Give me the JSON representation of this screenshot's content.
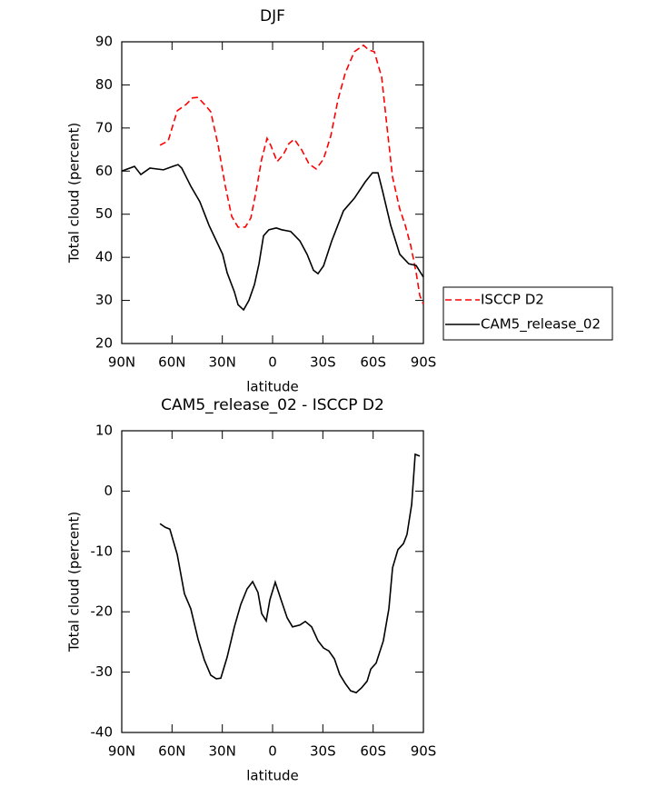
{
  "chart_data": [
    {
      "type": "line",
      "title": "DJF",
      "xlabel": "latitude",
      "ylabel": "Total cloud (percent)",
      "xlim": [
        90,
        -90
      ],
      "xticks": [
        {
          "value": 90,
          "label": "90N"
        },
        {
          "value": 60,
          "label": "60N"
        },
        {
          "value": 30,
          "label": "30N"
        },
        0,
        {
          "value": -30,
          "label": "30S"
        },
        {
          "value": -60,
          "label": "60S"
        },
        {
          "value": -90,
          "label": "90S"
        }
      ],
      "ylim": [
        20,
        90
      ],
      "yticks": [
        20,
        30,
        40,
        50,
        60,
        70,
        80,
        90
      ],
      "legend": "right",
      "series": [
        {
          "name": "ISCCP D2",
          "color": "#ff0000",
          "linestyle": "dashed",
          "x": [
            67.2,
            62.3,
            56.9,
            51.5,
            47.7,
            44.5,
            40.7,
            36.9,
            32.5,
            28.2,
            24.4,
            20.6,
            16.3,
            13,
            9.8,
            6.5,
            3.3,
            1.1,
            -2.7,
            -6.5,
            -9.8,
            -13,
            -17.4,
            -21.7,
            -26,
            -30.4,
            -34.7,
            -39,
            -43.4,
            -48.8,
            -54.2,
            -57.5,
            -60.7,
            -65.1,
            -68.3,
            -71.6,
            -75.9,
            -79.2,
            -82.4,
            -85.7,
            -87.8,
            -90
          ],
          "values": [
            66,
            67,
            74,
            75.5,
            77,
            77.1,
            75.5,
            73.8,
            66,
            56.5,
            49.5,
            47,
            47,
            49.1,
            55.4,
            62.8,
            67.6,
            66,
            62.2,
            63.9,
            66.4,
            67.4,
            64.9,
            61.7,
            60.5,
            62.8,
            68.1,
            76.5,
            82.8,
            87.7,
            89.2,
            88.1,
            87.7,
            81.8,
            70.2,
            58.6,
            51.2,
            47.4,
            42.8,
            36.4,
            31.2,
            29.1
          ]
        },
        {
          "name": "CAM5_release_02",
          "color": "#000000",
          "linestyle": "solid",
          "x": [
            90,
            82.4,
            78.6,
            73.2,
            65.1,
            59.6,
            56.4,
            54.2,
            51.5,
            48.8,
            43.4,
            37.9,
            29.8,
            27.1,
            22.8,
            20.6,
            17.3,
            14.1,
            10.8,
            8.1,
            5.4,
            2.2,
            -2.2,
            -5.4,
            -10.8,
            -16.3,
            -20.6,
            -24.4,
            -27.1,
            -30.4,
            -35.3,
            -42.3,
            -48.8,
            -55.3,
            -59.6,
            -62.9,
            -65.6,
            -70.5,
            -75.9,
            -81.3,
            -85.7,
            -90
          ],
          "values": [
            60,
            61.1,
            59.2,
            60.7,
            60.3,
            61.1,
            61.5,
            60.7,
            58.6,
            56.5,
            52.9,
            47.4,
            40.7,
            36.4,
            32,
            29,
            27.8,
            30,
            33.7,
            38.5,
            45,
            46.4,
            46.8,
            46.4,
            46,
            43.8,
            40.7,
            37,
            36.2,
            38,
            43.8,
            50.8,
            53.7,
            57.5,
            59.6,
            59.6,
            55.4,
            47.4,
            40.7,
            38.5,
            38.1,
            35.4
          ]
        }
      ]
    },
    {
      "type": "line",
      "title": "CAM5_release_02 - ISCCP D2",
      "xlabel": "latitude",
      "ylabel": "Total cloud (percent)",
      "xlim": [
        90,
        -90
      ],
      "xticks": [
        {
          "value": 90,
          "label": "90N"
        },
        {
          "value": 60,
          "label": "60N"
        },
        {
          "value": 30,
          "label": "30N"
        },
        0,
        {
          "value": -30,
          "label": "30S"
        },
        {
          "value": -60,
          "label": "60S"
        },
        {
          "value": -90,
          "label": "90S"
        }
      ],
      "ylim": [
        -40,
        10
      ],
      "yticks": [
        -40,
        -30,
        -20,
        -10,
        0,
        10
      ],
      "color": "#000000",
      "x": [
        67.2,
        64,
        61.3,
        56.9,
        52.6,
        48.8,
        44.5,
        40.7,
        36.9,
        33.6,
        30.9,
        27.1,
        22.8,
        19,
        15.2,
        11.9,
        8.7,
        6.5,
        3.8,
        1.6,
        -1.6,
        -5.4,
        -8.7,
        -11.9,
        -16.3,
        -19.5,
        -23.3,
        -27.1,
        -30.4,
        -33.6,
        -36.9,
        -40.1,
        -43.4,
        -46.6,
        -49.9,
        -53.1,
        -56.4,
        -58.6,
        -61.8,
        -66.1,
        -69.4,
        -71.6,
        -74.8,
        -78.1,
        -80.2,
        -83,
        -85.1,
        -87.8
      ],
      "values": [
        -5.4,
        -6,
        -6.3,
        -10.5,
        -17,
        -19.5,
        -24.5,
        -28,
        -30.5,
        -31.1,
        -31,
        -27.5,
        -22.5,
        -18.8,
        -16.2,
        -15,
        -16.8,
        -20.3,
        -21.5,
        -18,
        -15.1,
        -18.3,
        -21,
        -22.5,
        -22.2,
        -21.6,
        -22.5,
        -24.8,
        -26,
        -26.5,
        -27.8,
        -30.4,
        -31.9,
        -33.1,
        -33.4,
        -32.6,
        -31.5,
        -29.5,
        -28.5,
        -24.8,
        -19.5,
        -12.7,
        -9.7,
        -8.7,
        -7.2,
        -2.2,
        6.1,
        5.8
      ]
    }
  ]
}
